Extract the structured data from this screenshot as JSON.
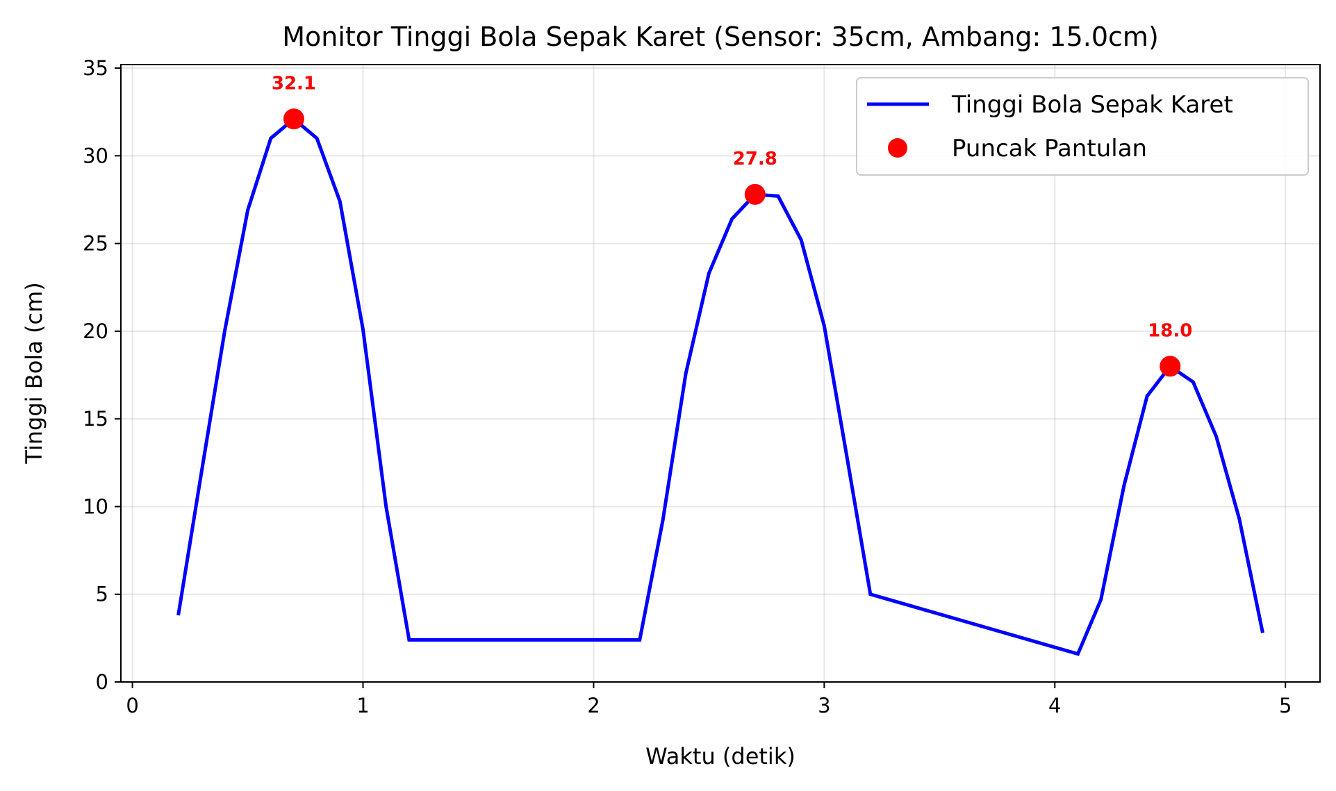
{
  "chart_data": {
    "type": "line",
    "title": "Monitor Tinggi Bola Sepak Karet (Sensor: 35cm, Ambang: 15.0cm)",
    "xlabel": "Waktu (detik)",
    "ylabel": "Tinggi Bola (cm)",
    "xlim": [
      -0.05,
      5.15
    ],
    "ylim": [
      0,
      35.2
    ],
    "xticks": [
      0,
      1,
      2,
      3,
      4,
      5
    ],
    "xtick_labels": [
      "0",
      "1",
      "2",
      "3",
      "4",
      "5"
    ],
    "yticks": [
      0,
      5,
      10,
      15,
      20,
      25,
      30,
      35
    ],
    "ytick_labels": [
      "0",
      "5",
      "10",
      "15",
      "20",
      "25",
      "30",
      "35"
    ],
    "grid": true,
    "legend_position": "top-right",
    "series": [
      {
        "name": "Tinggi Bola Sepak Karet",
        "kind": "line",
        "color": "#0000ff",
        "x": [
          0.2,
          0.3,
          0.4,
          0.5,
          0.6,
          0.7,
          0.8,
          0.9,
          1.0,
          1.1,
          1.2,
          2.2,
          2.3,
          2.4,
          2.5,
          2.6,
          2.7,
          2.8,
          2.9,
          3.0,
          3.1,
          3.2,
          4.1,
          4.2,
          4.3,
          4.4,
          4.5,
          4.6,
          4.7,
          4.8,
          4.9
        ],
        "y": [
          3.9,
          12.0,
          20.0,
          26.9,
          31.0,
          32.1,
          31.0,
          27.4,
          20.1,
          10.0,
          2.4,
          2.4,
          9.2,
          17.6,
          23.3,
          26.4,
          27.8,
          27.7,
          25.2,
          20.3,
          12.7,
          5.0,
          1.6,
          4.7,
          11.2,
          16.3,
          18.0,
          17.1,
          14.0,
          9.3,
          2.9
        ]
      },
      {
        "name": "Puncak Pantulan",
        "kind": "markers",
        "color": "#ff0000",
        "x": [
          0.7,
          2.7,
          4.5
        ],
        "y": [
          32.1,
          27.8,
          18.0
        ],
        "labels": [
          "32.1",
          "27.8",
          "18.0"
        ]
      }
    ]
  }
}
